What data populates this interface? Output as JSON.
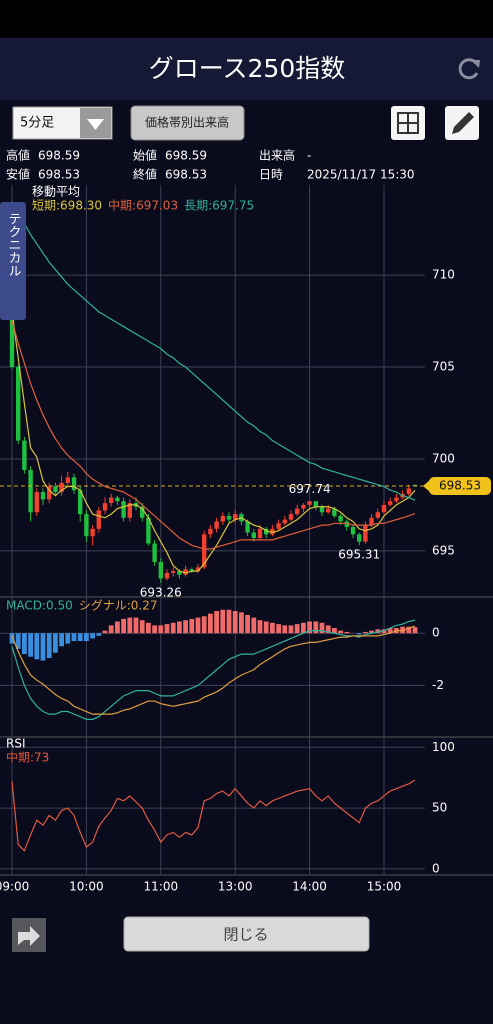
{
  "header": {
    "title": "グロース250指数"
  },
  "toolbar": {
    "interval": "5分足",
    "volume_button": "価格帯別出来高"
  },
  "side_tab": "テクニカル",
  "info": [
    [
      "高値",
      null
    ],
    [
      "始値",
      null
    ],
    [
      "出来高",
      "-"
    ],
    [
      "安値",
      null
    ],
    [
      "終値",
      null
    ],
    [
      "日時",
      "2025/11/17 15:30"
    ]
  ],
  "footer": {
    "close": "閉じる"
  },
  "chart_data": [
    {
      "type": "candlestick",
      "title": "移動平均",
      "up_color": "#f0402f",
      "down_color": "#1fbf3f",
      "categories": [
        "09:00",
        null,
        null,
        null,
        null,
        null,
        null,
        null,
        null,
        null,
        null,
        null,
        "10:00",
        null,
        null,
        null,
        null,
        null,
        null,
        null,
        null,
        null,
        null,
        null,
        "11:00",
        null,
        null,
        null,
        null,
        null,
        null,
        null,
        null,
        null,
        null,
        null,
        "13:00",
        null,
        null,
        null,
        null,
        null,
        null,
        null,
        null,
        null,
        null,
        null,
        "14:00",
        null,
        null,
        null,
        null,
        null,
        null,
        null,
        null,
        null,
        null,
        null,
        "15:00",
        null,
        null,
        null,
        null,
        null
      ],
      "ohlc": [
        [
          708.4,
          708.6,
          704.9,
          705.0
        ],
        [
          705.0,
          705.1,
          700.8,
          701.0
        ],
        [
          701.0,
          701.2,
          699.2,
          699.4
        ],
        [
          699.4,
          699.6,
          696.6,
          697.1
        ],
        [
          697.1,
          698.4,
          696.9,
          698.2
        ],
        [
          698.2,
          698.4,
          697.5,
          697.8
        ],
        [
          697.8,
          698.7,
          697.6,
          698.5
        ],
        [
          698.5,
          698.7,
          698.0,
          698.2
        ],
        [
          698.2,
          699.1,
          698.0,
          698.7
        ],
        [
          698.7,
          699.3,
          698.5,
          699.0
        ],
        [
          699.0,
          699.2,
          698.1,
          698.3
        ],
        [
          698.3,
          698.5,
          696.6,
          697.0
        ],
        [
          697.0,
          697.2,
          695.5,
          695.8
        ],
        [
          695.8,
          696.4,
          695.3,
          696.2
        ],
        [
          696.2,
          697.4,
          696.0,
          697.2
        ],
        [
          697.2,
          697.9,
          697.0,
          697.6
        ],
        [
          697.6,
          698.1,
          697.4,
          697.9
        ],
        [
          697.9,
          698.0,
          697.5,
          697.7
        ],
        [
          697.7,
          697.9,
          696.6,
          696.8
        ],
        [
          696.8,
          697.8,
          696.6,
          697.6
        ],
        [
          697.6,
          697.9,
          697.2,
          697.4
        ],
        [
          697.4,
          697.6,
          696.6,
          696.8
        ],
        [
          696.8,
          697.0,
          695.3,
          695.4
        ],
        [
          695.4,
          695.6,
          694.2,
          694.4
        ],
        [
          694.4,
          694.6,
          693.26,
          693.5
        ],
        [
          693.5,
          694.0,
          693.4,
          693.8
        ],
        [
          693.8,
          694.1,
          693.6,
          693.9
        ],
        [
          693.9,
          694.0,
          693.5,
          693.7
        ],
        [
          693.7,
          694.2,
          693.6,
          694.0
        ],
        [
          694.0,
          694.1,
          693.8,
          693.9
        ],
        [
          693.9,
          694.3,
          693.8,
          694.1
        ],
        [
          694.1,
          696.1,
          694.0,
          695.9
        ],
        [
          695.9,
          696.4,
          695.7,
          696.2
        ],
        [
          696.2,
          696.8,
          696.0,
          696.6
        ],
        [
          696.6,
          697.1,
          696.4,
          696.9
        ],
        [
          696.9,
          697.1,
          696.5,
          696.7
        ],
        [
          696.7,
          697.2,
          696.5,
          697.0
        ],
        [
          697.0,
          697.1,
          696.4,
          696.6
        ],
        [
          696.6,
          696.7,
          695.8,
          696.0
        ],
        [
          696.0,
          696.2,
          695.5,
          695.7
        ],
        [
          695.7,
          696.4,
          695.6,
          696.2
        ],
        [
          696.2,
          696.3,
          695.7,
          695.9
        ],
        [
          695.9,
          696.4,
          695.8,
          696.2
        ],
        [
          696.2,
          696.7,
          696.1,
          696.5
        ],
        [
          696.5,
          696.9,
          696.4,
          696.7
        ],
        [
          696.7,
          697.2,
          696.6,
          697.0
        ],
        [
          697.0,
          697.5,
          696.9,
          697.3
        ],
        [
          697.3,
          697.6,
          697.1,
          697.5
        ],
        [
          697.5,
          697.74,
          697.3,
          697.7
        ],
        [
          697.7,
          697.7,
          697.2,
          697.4
        ],
        [
          697.4,
          697.5,
          696.9,
          697.1
        ],
        [
          697.1,
          697.5,
          697.0,
          697.3
        ],
        [
          697.3,
          697.4,
          696.8,
          696.9
        ],
        [
          696.9,
          697.0,
          696.4,
          696.6
        ],
        [
          696.6,
          696.7,
          696.1,
          696.3
        ],
        [
          696.3,
          696.4,
          695.7,
          695.9
        ],
        [
          695.9,
          696.0,
          695.31,
          695.5
        ],
        [
          695.5,
          696.6,
          695.4,
          696.4
        ],
        [
          696.4,
          697.0,
          696.3,
          696.8
        ],
        [
          696.8,
          697.3,
          696.7,
          697.1
        ],
        [
          697.1,
          697.7,
          697.0,
          697.5
        ],
        [
          697.5,
          697.9,
          697.4,
          697.7
        ],
        [
          697.7,
          698.1,
          697.6,
          697.9
        ],
        [
          697.9,
          698.3,
          697.8,
          698.1
        ],
        [
          698.1,
          698.6,
          698.0,
          698.4
        ],
        [
          698.59,
          698.59,
          698.53,
          698.53
        ]
      ],
      "annotations": [
        693.26,
        697.74,
        695.31
      ],
      "series": [
        {
          "name": "短期:698.30",
          "color": "#d8c43c",
          "values": [
            708.0,
            705.5,
            703.0,
            700.6,
            700.1,
            698.8,
            698.3,
            698.0,
            698.3,
            698.5,
            698.5,
            698.3,
            697.6,
            697.0,
            696.9,
            696.8,
            697.0,
            697.3,
            697.4,
            697.5,
            697.5,
            697.3,
            696.8,
            696.1,
            695.5,
            694.9,
            694.2,
            693.9,
            693.8,
            693.9,
            693.9,
            694.3,
            694.8,
            695.3,
            695.9,
            696.5,
            696.7,
            696.8,
            696.6,
            696.4,
            696.3,
            696.1,
            696.0,
            696.1,
            696.3,
            696.5,
            696.7,
            697.0,
            697.3,
            697.4,
            697.4,
            697.4,
            697.3,
            697.1,
            696.8,
            696.6,
            696.2,
            696.1,
            696.2,
            696.4,
            696.9,
            697.2,
            697.5,
            697.7,
            697.9,
            698.3
          ]
        },
        {
          "name": "中期:697.03",
          "color": "#e0603a",
          "values": [
            707.5,
            706.3,
            705.2,
            704.1,
            703.2,
            702.4,
            701.7,
            701.1,
            700.6,
            700.2,
            699.9,
            699.6,
            699.2,
            698.9,
            698.7,
            698.5,
            698.4,
            698.3,
            698.2,
            698.0,
            697.8,
            697.5,
            697.2,
            696.9,
            696.6,
            696.3,
            696.0,
            695.7,
            695.5,
            695.3,
            695.2,
            695.1,
            695.1,
            695.2,
            695.3,
            695.4,
            695.5,
            695.6,
            695.6,
            695.6,
            695.6,
            695.6,
            695.6,
            695.7,
            695.8,
            695.9,
            696.0,
            696.1,
            696.2,
            696.3,
            696.4,
            696.4,
            696.5,
            696.5,
            696.5,
            696.4,
            696.4,
            696.4,
            696.4,
            696.5,
            696.5,
            696.6,
            696.7,
            696.8,
            696.9,
            697.03
          ]
        },
        {
          "name": "長期:697.75",
          "color": "#2fb39a",
          "values": [
            714.0,
            713.4,
            712.8,
            712.2,
            711.7,
            711.2,
            710.7,
            710.3,
            709.9,
            709.5,
            709.2,
            708.9,
            708.6,
            708.3,
            708.0,
            707.8,
            707.6,
            707.4,
            707.2,
            707.0,
            706.8,
            706.6,
            706.4,
            706.2,
            706.0,
            705.7,
            705.5,
            705.2,
            705.0,
            704.7,
            704.4,
            704.1,
            703.8,
            703.5,
            703.2,
            702.9,
            702.6,
            702.3,
            702.0,
            701.8,
            701.5,
            701.3,
            701.0,
            700.8,
            700.6,
            700.4,
            700.2,
            700.0,
            699.8,
            699.7,
            699.5,
            699.4,
            699.3,
            699.2,
            699.1,
            699.0,
            698.9,
            698.8,
            698.7,
            698.6,
            698.5,
            698.3,
            698.2,
            698.0,
            697.9,
            697.75
          ]
        }
      ],
      "ylim": [
        692.6,
        714.9
      ],
      "yticks": [
        695,
        700,
        705,
        710
      ],
      "grid": true
    },
    {
      "type": "macd",
      "pos_color": "#f06a6a",
      "neg_color": "#3a8ee0",
      "histogram": [
        -0.4,
        -0.6,
        -0.8,
        -0.9,
        -1.0,
        -1.05,
        -0.95,
        -0.75,
        -0.5,
        -0.4,
        -0.3,
        -0.3,
        -0.3,
        -0.2,
        -0.1,
        0.1,
        0.3,
        0.45,
        0.55,
        0.6,
        0.6,
        0.5,
        0.4,
        0.3,
        0.3,
        0.35,
        0.4,
        0.45,
        0.5,
        0.55,
        0.6,
        0.65,
        0.75,
        0.85,
        0.9,
        0.9,
        0.85,
        0.8,
        0.7,
        0.6,
        0.5,
        0.45,
        0.4,
        0.35,
        0.3,
        0.3,
        0.35,
        0.4,
        0.45,
        0.45,
        0.4,
        0.3,
        0.2,
        0.1,
        0.05,
        0.0,
        -0.05,
        0.05,
        0.1,
        0.15,
        0.15,
        0.2,
        0.2,
        0.25,
        0.25,
        0.23
      ],
      "series": [
        {
          "name": "MACD:0.50",
          "color": "#2fb39a",
          "values": [
            -0.5,
            -1.3,
            -2.0,
            -2.5,
            -2.8,
            -3.0,
            -3.1,
            -3.1,
            -3.0,
            -3.0,
            -3.1,
            -3.2,
            -3.3,
            -3.3,
            -3.2,
            -3.0,
            -2.8,
            -2.6,
            -2.4,
            -2.3,
            -2.2,
            -2.2,
            -2.2,
            -2.3,
            -2.4,
            -2.4,
            -2.4,
            -2.3,
            -2.2,
            -2.1,
            -2.0,
            -1.8,
            -1.6,
            -1.4,
            -1.2,
            -1.0,
            -0.9,
            -0.8,
            -0.8,
            -0.8,
            -0.7,
            -0.6,
            -0.5,
            -0.4,
            -0.3,
            -0.2,
            -0.1,
            0.0,
            0.1,
            0.1,
            0.1,
            0.05,
            0.0,
            -0.05,
            -0.1,
            -0.1,
            -0.15,
            -0.05,
            0.0,
            0.05,
            0.1,
            0.2,
            0.3,
            0.35,
            0.45,
            0.5
          ]
        },
        {
          "name": "シグナル:0.27",
          "color": "#e0a040",
          "values": [
            -0.1,
            -0.7,
            -1.2,
            -1.6,
            -1.8,
            -1.95,
            -2.15,
            -2.35,
            -2.5,
            -2.6,
            -2.8,
            -2.9,
            -3.0,
            -3.1,
            -3.1,
            -3.1,
            -3.1,
            -3.05,
            -2.95,
            -2.9,
            -2.8,
            -2.7,
            -2.6,
            -2.6,
            -2.7,
            -2.75,
            -2.8,
            -2.75,
            -2.7,
            -2.65,
            -2.6,
            -2.45,
            -2.35,
            -2.25,
            -2.1,
            -1.9,
            -1.75,
            -1.6,
            -1.5,
            -1.4,
            -1.2,
            -1.05,
            -0.9,
            -0.75,
            -0.6,
            -0.5,
            -0.45,
            -0.4,
            -0.35,
            -0.35,
            -0.3,
            -0.25,
            -0.2,
            -0.15,
            -0.15,
            -0.1,
            -0.1,
            -0.1,
            -0.1,
            -0.1,
            -0.05,
            0.0,
            0.1,
            0.1,
            0.2,
            0.27
          ]
        }
      ],
      "ylim": [
        -3.9,
        1.35
      ],
      "yticks": [
        -2,
        0
      ],
      "grid": true
    },
    {
      "type": "line",
      "title": "RSI",
      "series": [
        {
          "name": "中期:73",
          "color": "#e05a40",
          "values": [
            72,
            20,
            15,
            28,
            40,
            36,
            44,
            40,
            48,
            50,
            44,
            30,
            18,
            22,
            35,
            42,
            48,
            58,
            56,
            60,
            55,
            50,
            40,
            32,
            22,
            28,
            30,
            26,
            30,
            28,
            34,
            56,
            58,
            62,
            64,
            60,
            66,
            60,
            54,
            50,
            56,
            52,
            56,
            58,
            60,
            62,
            64,
            65,
            66,
            60,
            56,
            60,
            54,
            50,
            46,
            42,
            38,
            50,
            54,
            56,
            60,
            64,
            66,
            68,
            70,
            73
          ]
        }
      ],
      "ylim": [
        -5,
        106
      ],
      "yticks": [
        0,
        50,
        100
      ],
      "grid": true
    }
  ]
}
